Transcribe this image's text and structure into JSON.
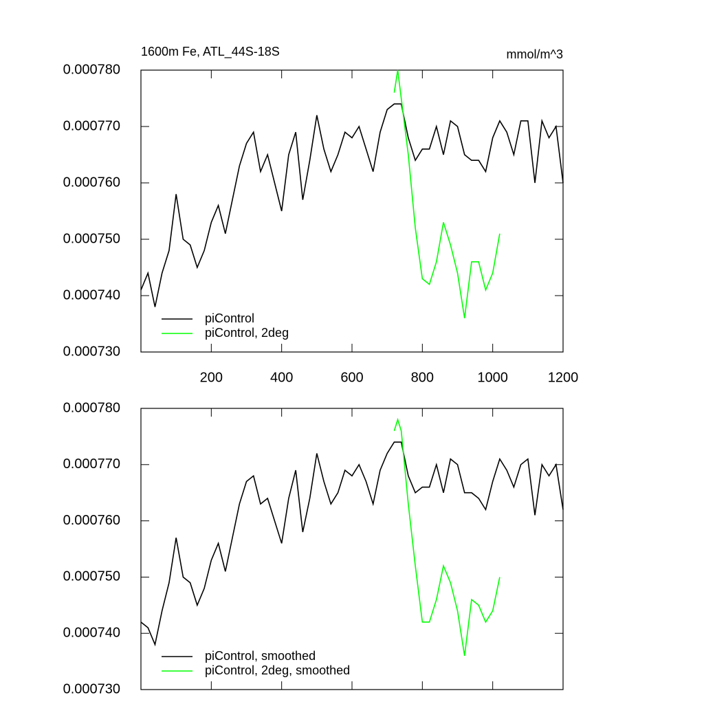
{
  "chart_data": [
    {
      "type": "line",
      "title": "1600m Fe, ATL_44S-18S",
      "units": "mmol/m^3",
      "xlim": [
        0,
        1200
      ],
      "xticks": [
        200,
        400,
        600,
        800,
        1000,
        1200
      ],
      "show_xtick_labels": true,
      "ylim": [
        0.00073,
        0.00078
      ],
      "yticks": [
        {
          "value": 0.00073,
          "label": "0.000730"
        },
        {
          "value": 0.00074,
          "label": "0.000740"
        },
        {
          "value": 0.00075,
          "label": "0.000750"
        },
        {
          "value": 0.00076,
          "label": "0.000760"
        },
        {
          "value": 0.00077,
          "label": "0.000770"
        },
        {
          "value": 0.00078,
          "label": "0.000780"
        }
      ],
      "legend": "lower left",
      "series": [
        {
          "name": "piControl",
          "color": "#000000",
          "x": [
            0,
            20,
            40,
            60,
            80,
            100,
            120,
            140,
            160,
            180,
            200,
            220,
            240,
            260,
            280,
            300,
            320,
            340,
            360,
            380,
            400,
            420,
            440,
            460,
            480,
            500,
            520,
            540,
            560,
            580,
            600,
            620,
            640,
            660,
            680,
            700,
            720,
            740,
            760,
            780,
            800,
            820,
            840,
            860,
            880,
            900,
            920,
            940,
            960,
            980,
            1000,
            1020,
            1040,
            1060,
            1080,
            1100,
            1120,
            1140,
            1160,
            1180,
            1200
          ],
          "values": [
            0.000741,
            0.000744,
            0.000738,
            0.000744,
            0.000748,
            0.000758,
            0.00075,
            0.000749,
            0.000745,
            0.000748,
            0.000753,
            0.000756,
            0.000751,
            0.000757,
            0.000763,
            0.000767,
            0.000769,
            0.000762,
            0.000765,
            0.00076,
            0.000755,
            0.000765,
            0.000769,
            0.000757,
            0.000764,
            0.000772,
            0.000766,
            0.000762,
            0.000765,
            0.000769,
            0.000768,
            0.00077,
            0.000766,
            0.000762,
            0.000769,
            0.000773,
            0.000774,
            0.000774,
            0.000768,
            0.000764,
            0.000766,
            0.000766,
            0.00077,
            0.000765,
            0.000771,
            0.00077,
            0.000765,
            0.000764,
            0.000764,
            0.000762,
            0.000768,
            0.000771,
            0.000769,
            0.000765,
            0.000771,
            0.000771,
            0.00076,
            0.000771,
            0.000768,
            0.00077,
            0.00076
          ]
        },
        {
          "name": "piControl, 2deg",
          "color": "#00ff00",
          "x": [
            720,
            730,
            740,
            760,
            780,
            800,
            820,
            840,
            860,
            880,
            900,
            920,
            940,
            960,
            980,
            1000,
            1020
          ],
          "values": [
            0.000776,
            0.00078,
            0.000775,
            0.000765,
            0.000752,
            0.000743,
            0.000742,
            0.000746,
            0.000753,
            0.000749,
            0.000744,
            0.000736,
            0.000746,
            0.000746,
            0.000741,
            0.000744,
            0.000751
          ]
        }
      ]
    },
    {
      "type": "line",
      "xlim": [
        0,
        1200
      ],
      "xticks": [
        200,
        400,
        600,
        800,
        1000,
        1200
      ],
      "show_xtick_labels": false,
      "ylim": [
        0.00073,
        0.00078
      ],
      "yticks": [
        {
          "value": 0.00073,
          "label": "0.000730"
        },
        {
          "value": 0.00074,
          "label": "0.000740"
        },
        {
          "value": 0.00075,
          "label": "0.000750"
        },
        {
          "value": 0.00076,
          "label": "0.000760"
        },
        {
          "value": 0.00077,
          "label": "0.000770"
        },
        {
          "value": 0.00078,
          "label": "0.000780"
        }
      ],
      "legend": "lower left",
      "series": [
        {
          "name": "piControl, smoothed",
          "color": "#000000",
          "x": [
            0,
            20,
            40,
            60,
            80,
            100,
            120,
            140,
            160,
            180,
            200,
            220,
            240,
            260,
            280,
            300,
            320,
            340,
            360,
            380,
            400,
            420,
            440,
            460,
            480,
            500,
            520,
            540,
            560,
            580,
            600,
            620,
            640,
            660,
            680,
            700,
            720,
            740,
            760,
            780,
            800,
            820,
            840,
            860,
            880,
            900,
            920,
            940,
            960,
            980,
            1000,
            1020,
            1040,
            1060,
            1080,
            1100,
            1120,
            1140,
            1160,
            1180,
            1200
          ],
          "values": [
            0.000742,
            0.000741,
            0.000738,
            0.000744,
            0.000749,
            0.000757,
            0.00075,
            0.000749,
            0.000745,
            0.000748,
            0.000753,
            0.000756,
            0.000751,
            0.000757,
            0.000763,
            0.000767,
            0.000768,
            0.000763,
            0.000764,
            0.00076,
            0.000756,
            0.000764,
            0.000769,
            0.000758,
            0.000764,
            0.000772,
            0.000767,
            0.000763,
            0.000765,
            0.000769,
            0.000768,
            0.00077,
            0.000767,
            0.000763,
            0.000769,
            0.000772,
            0.000774,
            0.000774,
            0.000768,
            0.000765,
            0.000766,
            0.000766,
            0.00077,
            0.000765,
            0.000771,
            0.00077,
            0.000765,
            0.000765,
            0.000764,
            0.000762,
            0.000767,
            0.000771,
            0.000769,
            0.000766,
            0.00077,
            0.000771,
            0.000761,
            0.00077,
            0.000768,
            0.00077,
            0.000762
          ]
        },
        {
          "name": "piControl, 2deg, smoothed",
          "color": "#00ff00",
          "x": [
            720,
            730,
            740,
            760,
            780,
            800,
            820,
            840,
            860,
            880,
            900,
            920,
            940,
            960,
            980,
            1000,
            1020
          ],
          "values": [
            0.000776,
            0.000778,
            0.000776,
            0.000763,
            0.000752,
            0.000742,
            0.000742,
            0.000746,
            0.000752,
            0.000749,
            0.000744,
            0.000736,
            0.000746,
            0.000745,
            0.000742,
            0.000744,
            0.00075
          ]
        }
      ]
    }
  ]
}
